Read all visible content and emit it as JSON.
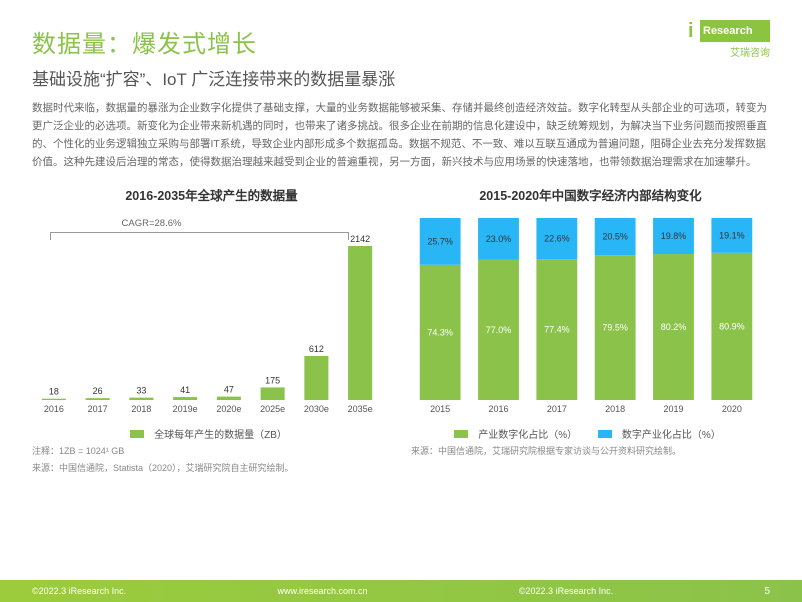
{
  "logo": {
    "brand": "Research",
    "cn": "艾瑞咨询"
  },
  "title": "数据量：爆发式增长",
  "subtitle": "基础设施“扩容”、IoT 广泛连接带来的数据量暴涨",
  "body": "数据时代来临，数据量的暴涨为企业数字化提供了基础支撑，大量的业务数据能够被采集、存储并最终创造经济效益。数字化转型从头部企业的可选项，转变为更广泛企业的必选项。新变化为企业带来新机遇的同时，也带来了诸多挑战。很多企业在前期的信息化建设中，缺乏统筹规划，为解决当下业务问题而按照垂直的、个性化的业务逻辑独立采购与部署IT系统，导致企业内部形成多个数据孤岛。数据不规范、不一致、难以互联互通成为普遍问题，阻碍企业去充分发挥数据价值。这种先建设后治理的常态，使得数据治理越来越受到企业的普遍重视，另一方面，新兴技术与应用场景的快速落地，也带领数据治理需求在加速攀升。",
  "chart1": {
    "title": "2016-2035年全球产生的数据量",
    "type": "bar",
    "cagr_label": "CAGR=28.6%",
    "categories": [
      "2016",
      "2017",
      "2018",
      "2019e",
      "2020e",
      "2025e",
      "2030e",
      "2035e"
    ],
    "values": [
      18,
      26,
      33,
      41,
      47,
      175,
      612,
      2142
    ],
    "bar_color": "#8bc34a",
    "value_fontsize": 9,
    "cat_fontsize": 9,
    "ymax": 2142,
    "legend": "全球每年产生的数据量（ZB）",
    "note1": "注释：1ZB = 1024¹ GB",
    "note2": "来源：中国信通院，Statista（2020），艾瑞研究院自主研究绘制。"
  },
  "chart2": {
    "title": "2015-2020年中国数字经济内部结构变化",
    "type": "stacked-bar-100",
    "categories": [
      "2015",
      "2016",
      "2017",
      "2018",
      "2019",
      "2020"
    ],
    "series": [
      {
        "name": "产业数字化占比（%）",
        "color": "#8bc34a",
        "values": [
          74.3,
          77.0,
          77.4,
          79.5,
          80.2,
          80.9
        ]
      },
      {
        "name": "数字产业化占比（%）",
        "color": "#29b6f6",
        "values": [
          25.7,
          23.0,
          22.6,
          20.5,
          19.8,
          19.1
        ]
      }
    ],
    "label_fontsize": 9,
    "note": "来源：中国信通院，艾瑞研究院根据专家访谈与公开资料研究绘制。"
  },
  "footer": {
    "copy": "©2022.3 iResearch Inc.",
    "url": "www.iresearch.com.cn",
    "page": "5"
  }
}
